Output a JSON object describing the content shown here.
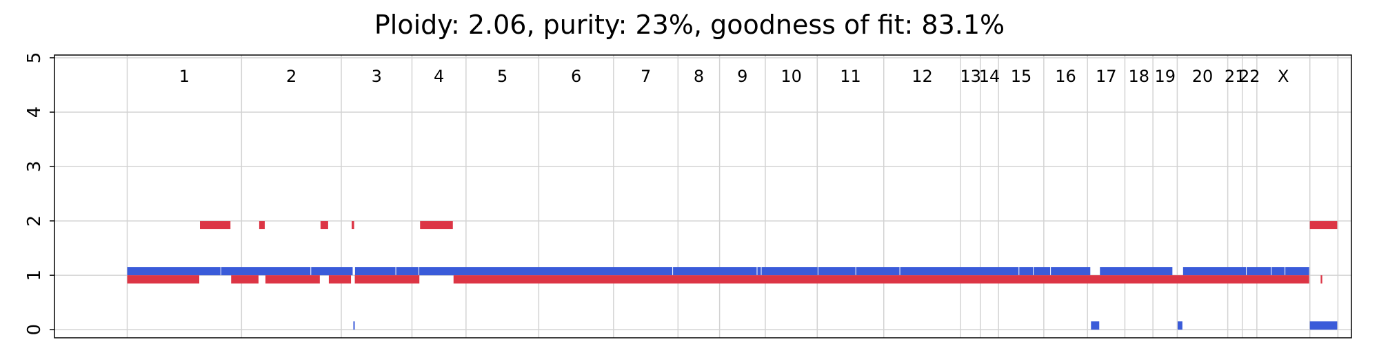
{
  "chart_data": {
    "type": "bar",
    "title": "Ploidy: 2.06, purity: 23%, goodness of fit: 83.1%",
    "xlabel": "",
    "ylabel": "",
    "ylim": [
      -0.15,
      5.05
    ],
    "yticks": [
      0,
      1,
      2,
      3,
      4,
      5
    ],
    "grid": true,
    "chromosomes": [
      "1",
      "2",
      "3",
      "4",
      "5",
      "6",
      "7",
      "8",
      "9",
      "10",
      "11",
      "12",
      "13",
      "14",
      "15",
      "16",
      "17",
      "18",
      "19",
      "20",
      "21",
      "22",
      "X"
    ],
    "colors": {
      "major": "#3A5BD9",
      "minor": "#DC3545",
      "grid": "#D3D3D3",
      "axis": "#000000"
    },
    "series": [
      {
        "name": "",
        "color_key": "major",
        "segments": [
          {
            "start": 0.0,
            "end": 4.52,
            "value": 1
          },
          {
            "start": 4.52,
            "end": 8.85,
            "value": 1
          },
          {
            "start": 8.85,
            "end": 10.88,
            "value": 1
          },
          {
            "start": 10.88,
            "end": 10.96,
            "value": 0
          },
          {
            "start": 10.96,
            "end": 12.94,
            "value": 1
          },
          {
            "start": 12.94,
            "end": 14.05,
            "value": 1
          },
          {
            "start": 14.05,
            "end": 26.26,
            "value": 1
          },
          {
            "start": 26.26,
            "end": 30.32,
            "value": 1
          },
          {
            "start": 30.32,
            "end": 30.52,
            "value": 1
          },
          {
            "start": 30.52,
            "end": 33.25,
            "value": 1
          },
          {
            "start": 33.25,
            "end": 35.07,
            "value": 1
          },
          {
            "start": 35.07,
            "end": 37.19,
            "value": 1
          },
          {
            "start": 37.19,
            "end": 42.92,
            "value": 1
          },
          {
            "start": 42.92,
            "end": 43.61,
            "value": 1
          },
          {
            "start": 43.61,
            "end": 44.44,
            "value": 1
          },
          {
            "start": 44.44,
            "end": 46.37,
            "value": 1
          },
          {
            "start": 46.37,
            "end": 46.8,
            "value": 0
          },
          {
            "start": 46.8,
            "end": 50.32,
            "value": 1
          },
          {
            "start": 50.54,
            "end": 50.8,
            "value": 0
          },
          {
            "start": 50.8,
            "end": 53.86,
            "value": 1
          },
          {
            "start": 53.86,
            "end": 55.06,
            "value": 1
          },
          {
            "start": 55.06,
            "end": 55.72,
            "value": 1
          },
          {
            "start": 55.72,
            "end": 56.9,
            "value": 1
          },
          {
            "start": 56.9,
            "end": 58.25,
            "value": 0
          }
        ]
      },
      {
        "name": "",
        "color_key": "minor",
        "segments": [
          {
            "start": 0.0,
            "end": 3.5,
            "value": 1
          },
          {
            "start": 3.5,
            "end": 5.0,
            "value": 2
          },
          {
            "start": 5.0,
            "end": 6.35,
            "value": 1
          },
          {
            "start": 6.35,
            "end": 6.65,
            "value": 2
          },
          {
            "start": 6.65,
            "end": 9.3,
            "value": 1
          },
          {
            "start": 9.3,
            "end": 9.7,
            "value": 2
          },
          {
            "start": 9.7,
            "end": 10.8,
            "value": 1
          },
          {
            "start": 10.8,
            "end": 10.95,
            "value": 2
          },
          {
            "start": 10.95,
            "end": 14.09,
            "value": 1
          },
          {
            "start": 14.09,
            "end": 15.7,
            "value": 2
          },
          {
            "start": 15.7,
            "end": 56.9,
            "value": 1
          },
          {
            "start": 56.9,
            "end": 58.25,
            "value": 2
          },
          {
            "start": 57.42,
            "end": 57.53,
            "value": 1
          }
        ]
      }
    ]
  }
}
